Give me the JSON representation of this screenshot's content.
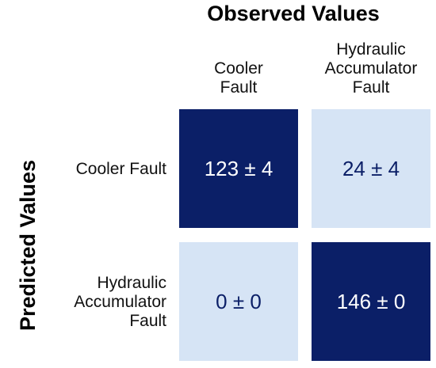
{
  "chart_data": {
    "type": "heatmap",
    "title": "",
    "xlabel": "Observed Values",
    "ylabel": "Predicted Values",
    "columns": [
      "Cooler Fault",
      "Hydraulic Accumulator Fault"
    ],
    "rows": [
      "Cooler Fault",
      "Hydraulic Accumulator Fault"
    ],
    "values": [
      [
        123,
        24
      ],
      [
        0,
        146
      ]
    ],
    "errors": [
      [
        4,
        4
      ],
      [
        0,
        0
      ]
    ],
    "cell_labels": [
      [
        "123 ± 4",
        "24 ± 4"
      ],
      [
        "0 ± 0",
        "146 ± 0"
      ]
    ],
    "colors": {
      "high": "#0b1f67",
      "low": "#d6e4f5",
      "high_text": "#ffffff",
      "low_text": "#0b1f67"
    }
  }
}
